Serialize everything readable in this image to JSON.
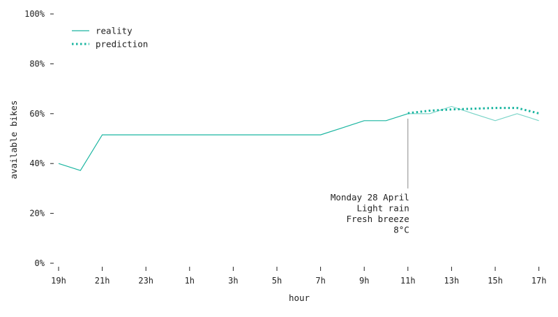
{
  "chart_data": {
    "type": "line",
    "xlabel": "hour",
    "ylabel": "available bikes",
    "x_ticks": [
      "19h",
      "21h",
      "23h",
      "1h",
      "3h",
      "5h",
      "7h",
      "9h",
      "11h",
      "13h",
      "15h",
      "17h"
    ],
    "y_ticks": [
      "0%",
      "20%",
      "40%",
      "60%",
      "80%",
      "100%"
    ],
    "ylim": [
      0,
      100
    ],
    "x_hours": [
      "19h",
      "20h",
      "21h",
      "22h",
      "23h",
      "0h",
      "1h",
      "2h",
      "3h",
      "4h",
      "5h",
      "6h",
      "7h",
      "8h",
      "9h",
      "10h",
      "11h",
      "12h",
      "13h",
      "14h",
      "15h",
      "16h",
      "17h"
    ],
    "legend_position": "top-left",
    "grid": false,
    "series": [
      {
        "name": "reality",
        "style": "solid",
        "color": "#1ab5a0",
        "values": [
          40,
          37.2,
          51.5,
          51.5,
          51.5,
          51.5,
          51.5,
          51.5,
          51.5,
          51.5,
          51.5,
          51.5,
          51.5,
          54.3,
          57.2,
          57.2,
          60,
          60,
          62.9,
          60,
          57.2,
          60,
          57.2
        ]
      },
      {
        "name": "prediction",
        "style": "dotted",
        "color": "#1ab5a0",
        "start_index": 16,
        "values": [
          60.2,
          61.2,
          61.7,
          62,
          62.3,
          62.3,
          60.1
        ]
      }
    ],
    "annotation": {
      "x_index": 16,
      "y_from": 30,
      "y_to": 58,
      "lines": [
        "Monday 28 April",
        "Light rain",
        "Fresh breeze",
        "8°C"
      ]
    }
  }
}
